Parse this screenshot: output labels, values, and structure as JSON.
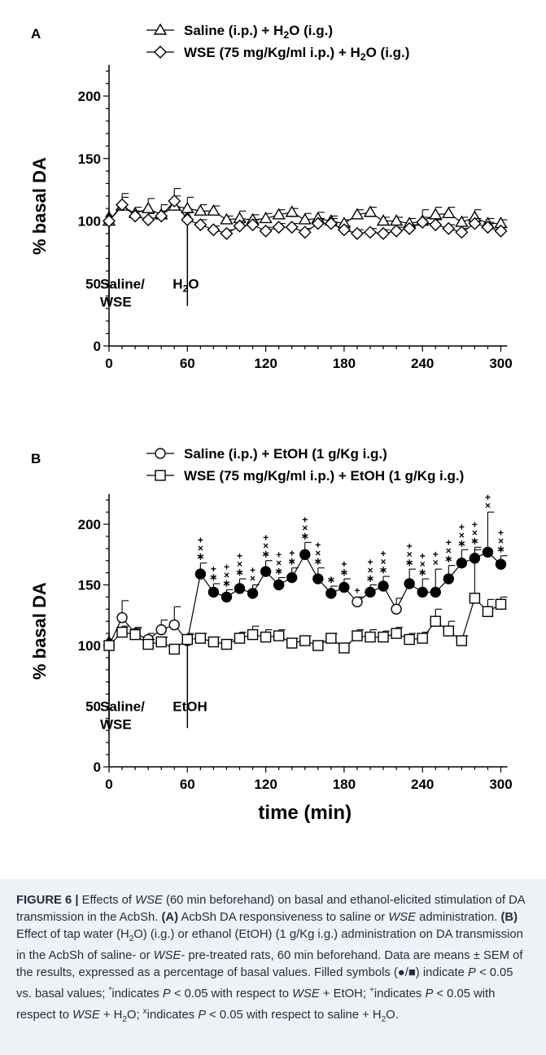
{
  "chart_data": [
    {
      "type": "line",
      "panel": "A",
      "legend": [
        {
          "marker": "triangle-open",
          "prefix": "Saline (i.p.) + H",
          "sub": "2",
          "suffix": "O (i.g.)"
        },
        {
          "marker": "diamond-open",
          "prefix": "WSE (75 mg/Kg/ml i.p.) + H",
          "sub": "2",
          "suffix": "O (i.g.)"
        }
      ],
      "ylabel": "% basal DA",
      "ylim": [
        0,
        225
      ],
      "xlim": [
        -10,
        305
      ],
      "yticks": [
        0,
        50,
        100,
        150,
        200
      ],
      "xticks": [
        0,
        60,
        120,
        180,
        240,
        300
      ],
      "annotations": [
        {
          "x": 0,
          "lines": [
            "Saline/",
            "WSE"
          ]
        },
        {
          "x": 60,
          "prefix": "H",
          "sub": "2",
          "suffix": "O"
        }
      ],
      "x": [
        0,
        10,
        20,
        30,
        40,
        50,
        60,
        70,
        80,
        90,
        100,
        110,
        120,
        130,
        140,
        150,
        160,
        170,
        180,
        190,
        200,
        210,
        220,
        230,
        240,
        250,
        260,
        270,
        280,
        290,
        300
      ],
      "series": [
        {
          "marker": "triangle-open",
          "values": [
            100,
            112,
            106,
            110,
            105,
            112,
            110,
            108,
            108,
            101,
            102,
            101,
            102,
            105,
            107,
            101,
            102,
            100,
            98,
            105,
            107,
            100,
            100,
            98,
            100,
            105,
            106,
            99,
            103,
            98,
            98
          ],
          "err": [
            0,
            10,
            5,
            8,
            8,
            8,
            9,
            5,
            4,
            3,
            6,
            4,
            4,
            4,
            3,
            5,
            5,
            4,
            3,
            4,
            4,
            3,
            3,
            4,
            9,
            6,
            5,
            4,
            6,
            4,
            3
          ],
          "filled": []
        },
        {
          "marker": "diamond-open",
          "values": [
            100,
            113,
            104,
            101,
            104,
            116,
            101,
            97,
            93,
            90,
            96,
            97,
            92,
            95,
            95,
            91,
            98,
            98,
            93,
            90,
            91,
            90,
            92,
            94,
            99,
            97,
            94,
            91,
            98,
            95,
            92
          ],
          "err": [
            0,
            6,
            4,
            5,
            4,
            10,
            6,
            4,
            3,
            3,
            4,
            4,
            3,
            3,
            3,
            3,
            4,
            4,
            3,
            3,
            3,
            3,
            3,
            3,
            4,
            4,
            3,
            3,
            4,
            4,
            3
          ],
          "filled": []
        }
      ]
    },
    {
      "type": "line",
      "panel": "B",
      "legend": [
        {
          "marker": "circle-open",
          "text": "Saline (i.p.) + EtOH (1 g/Kg i.g.)"
        },
        {
          "marker": "square-open",
          "text": "WSE (75 mg/Kg/ml i.p.) + EtOH (1 g/Kg i.g.)"
        }
      ],
      "ylabel": "% basal DA",
      "xlabel": "time (min)",
      "ylim": [
        0,
        225
      ],
      "xlim": [
        -10,
        305
      ],
      "yticks": [
        0,
        50,
        100,
        150,
        200
      ],
      "xticks": [
        0,
        60,
        120,
        180,
        240,
        300
      ],
      "annotations": [
        {
          "x": 0,
          "lines": [
            "Saline/",
            "WSE"
          ]
        },
        {
          "x": 60,
          "lines": [
            "EtOH"
          ]
        }
      ],
      "x": [
        0,
        10,
        20,
        30,
        40,
        50,
        60,
        70,
        80,
        90,
        100,
        110,
        120,
        130,
        140,
        150,
        160,
        170,
        180,
        190,
        200,
        210,
        220,
        230,
        240,
        250,
        260,
        270,
        280,
        290,
        300
      ],
      "series": [
        {
          "marker": "circle",
          "values": [
            100,
            123,
            110,
            105,
            113,
            117,
            104,
            159,
            144,
            140,
            147,
            143,
            161,
            150,
            156,
            175,
            155,
            143,
            148,
            136,
            144,
            149,
            130,
            151,
            144,
            144,
            155,
            168,
            172,
            177,
            167
          ],
          "err": [
            0,
            14,
            5,
            5,
            8,
            15,
            5,
            9,
            7,
            6,
            8,
            7,
            9,
            6,
            8,
            10,
            9,
            6,
            7,
            4,
            6,
            8,
            9,
            12,
            11,
            19,
            11,
            11,
            9,
            33,
            7
          ],
          "filled": [
            7,
            8,
            9,
            10,
            11,
            12,
            13,
            14,
            15,
            16,
            17,
            18,
            20,
            21,
            23,
            24,
            25,
            26,
            27,
            28,
            29,
            30
          ]
        },
        {
          "marker": "square",
          "values": [
            100,
            111,
            109,
            101,
            103,
            97,
            105,
            106,
            103,
            101,
            106,
            109,
            107,
            108,
            102,
            104,
            100,
            106,
            98,
            108,
            107,
            107,
            110,
            105,
            106,
            120,
            112,
            104,
            139,
            128,
            134
          ],
          "err": [
            0,
            5,
            5,
            4,
            4,
            4,
            5,
            4,
            4,
            4,
            5,
            7,
            6,
            5,
            4,
            4,
            4,
            4,
            4,
            5,
            6,
            5,
            5,
            5,
            5,
            10,
            8,
            4,
            40,
            10,
            6
          ],
          "filled": []
        }
      ],
      "significance": [
        {
          "x": 70,
          "marks": "+×∗"
        },
        {
          "x": 80,
          "marks": "+∗"
        },
        {
          "x": 90,
          "marks": "+×∗"
        },
        {
          "x": 100,
          "marks": "+×∗"
        },
        {
          "x": 110,
          "marks": "+×"
        },
        {
          "x": 120,
          "marks": "+×∗"
        },
        {
          "x": 130,
          "marks": "+×∗"
        },
        {
          "x": 140,
          "marks": "+∗"
        },
        {
          "x": 150,
          "marks": "+×∗"
        },
        {
          "x": 160,
          "marks": "+×∗"
        },
        {
          "x": 170,
          "marks": "∗"
        },
        {
          "x": 180,
          "marks": "+∗"
        },
        {
          "x": 190,
          "marks": "+"
        },
        {
          "x": 200,
          "marks": "+×∗"
        },
        {
          "x": 210,
          "marks": "+×∗"
        },
        {
          "x": 230,
          "marks": "+×∗"
        },
        {
          "x": 240,
          "marks": "+×∗"
        },
        {
          "x": 250,
          "marks": "+×"
        },
        {
          "x": 260,
          "marks": "+×∗"
        },
        {
          "x": 270,
          "marks": "+×∗"
        },
        {
          "x": 280,
          "marks": "+×∗"
        },
        {
          "x": 290,
          "marks": "+×"
        },
        {
          "x": 300,
          "marks": "+×∗"
        }
      ]
    }
  ],
  "caption": {
    "figure_label": "FIGURE 6 |",
    "effects_of": " Effects of ",
    "wse": "WSE",
    "intro_rest": " (60 min beforehand) on basal and ethanol-elicited stimulation of DA transmission in the AcbSh. ",
    "panel_a_label": "(A)",
    "panel_a_text": " AcbSh DA responsiveness to saline or ",
    "panel_a_text2": " administration. ",
    "panel_b_label": "(B)",
    "panel_b_text": " Effect of tap water (H",
    "panel_b_text2": "O) (i.g.) or ethanol (EtOH) (1 g/Kg i.g.) administration on DA transmission in the AcbSh of saline- or ",
    "panel_b_text3": "- pre-treated rats, 60 min beforehand. Data are means ± SEM of the results, expressed as a percentage of basal values. Filled symbols (●/■) indicate ",
    "p": "P",
    "lt_005": " < 0.05 vs. basal values; ",
    "star": "*",
    "indicates": "indicates ",
    "lt_005_wrt": " < 0.05 with respect to ",
    "plus_etoh": " + EtOH; ",
    "plus": "+",
    "plus_h2o": " + H",
    "o_semicolon": "O; ",
    "x": "x",
    "saline_h2o": " < 0.05 with respect to saline + H",
    "o_end": "O.",
    "sub2": "2"
  }
}
